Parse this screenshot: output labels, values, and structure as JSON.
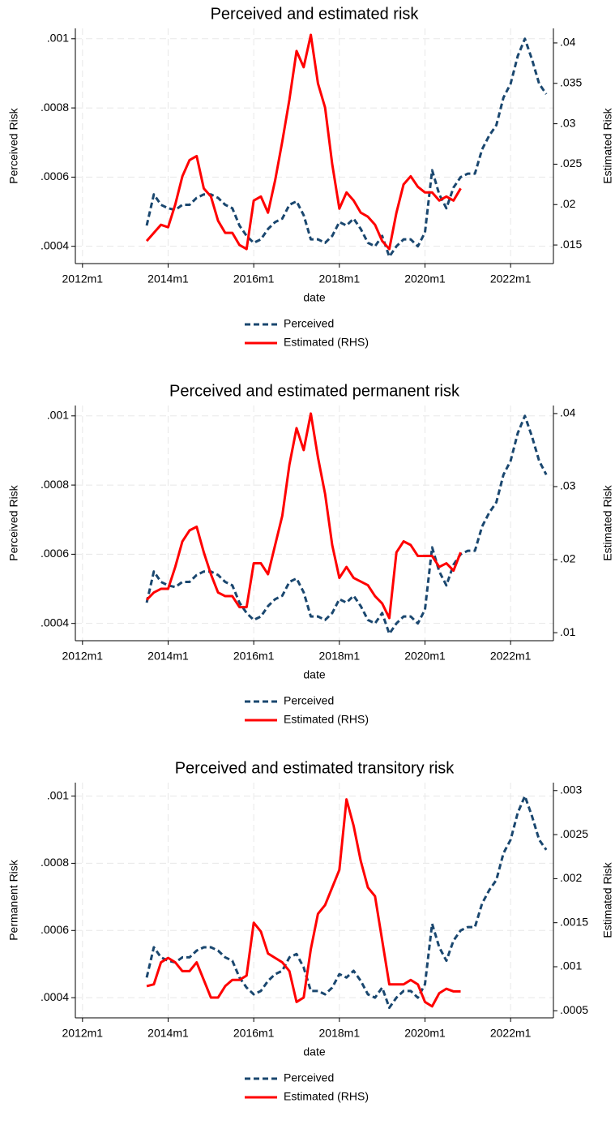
{
  "chart_data": [
    {
      "type": "line",
      "title": "Perceived and estimated risk",
      "xlabel": "date",
      "ylabel": "Perceived Risk",
      "y2label": "Estimated Risk",
      "x": [
        "2013m7",
        "2013m9",
        "2013m11",
        "2014m1",
        "2014m3",
        "2014m5",
        "2014m7",
        "2014m9",
        "2014m11",
        "2015m1",
        "2015m3",
        "2015m5",
        "2015m7",
        "2015m9",
        "2015m11",
        "2016m1",
        "2016m3",
        "2016m5",
        "2016m7",
        "2016m9",
        "2016m11",
        "2017m1",
        "2017m3",
        "2017m5",
        "2017m7",
        "2017m9",
        "2017m11",
        "2018m1",
        "2018m3",
        "2018m5",
        "2018m7",
        "2018m9",
        "2018m11",
        "2019m1",
        "2019m3",
        "2019m5",
        "2019m7",
        "2019m9",
        "2019m11",
        "2020m1",
        "2020m3",
        "2020m5",
        "2020m7",
        "2020m9",
        "2020m11",
        "2021m1",
        "2021m3",
        "2021m5",
        "2021m7",
        "2021m9",
        "2021m11",
        "2022m1",
        "2022m3",
        "2022m5",
        "2022m7",
        "2022m9",
        "2022m11"
      ],
      "series": [
        {
          "name": "Perceived",
          "color": "#1a476f",
          "dash": true,
          "axis": "y",
          "values": [
            0.00046,
            0.00055,
            0.00052,
            0.00051,
            0.000505,
            0.00052,
            0.00052,
            0.00054,
            0.00055,
            0.00055,
            0.00054,
            0.00052,
            0.00051,
            0.00046,
            0.00043,
            0.00041,
            0.00042,
            0.00045,
            0.00047,
            0.00048,
            0.00052,
            0.00053,
            0.00049,
            0.00042,
            0.00042,
            0.00041,
            0.00043,
            0.00047,
            0.00046,
            0.00048,
            0.00045,
            0.00041,
            0.0004,
            0.00043,
            0.00037,
            0.0004,
            0.00042,
            0.00042,
            0.0004,
            0.00044,
            0.00062,
            0.00055,
            0.00051,
            0.00057,
            0.0006,
            0.00061,
            0.00061,
            0.00068,
            0.00072,
            0.00075,
            0.00083,
            0.00087,
            0.00095,
            0.001,
            0.00094,
            0.00087,
            0.00084
          ]
        },
        {
          "name": "Estimated (RHS)",
          "color": "#ff0000",
          "dash": false,
          "axis": "y2",
          "values": [
            0.0155,
            0.0165,
            0.0175,
            0.0172,
            0.02,
            0.0235,
            0.0255,
            0.026,
            0.022,
            0.021,
            0.018,
            0.0165,
            0.0165,
            0.015,
            0.0145,
            0.0205,
            0.021,
            0.019,
            0.023,
            0.0278,
            0.033,
            0.039,
            0.037,
            0.041,
            0.035,
            0.032,
            0.025,
            0.0195,
            0.0215,
            0.0205,
            0.019,
            0.0185,
            0.0175,
            0.0155,
            0.0145,
            0.019,
            0.0225,
            0.0235,
            0.0222,
            0.0215,
            0.0215,
            0.0205,
            0.021,
            0.0205,
            0.022,
            null,
            null,
            null,
            null,
            null,
            null,
            null,
            null,
            null,
            null,
            null,
            null
          ]
        }
      ],
      "xlim": [
        "2011m11",
        "2023m1"
      ],
      "xticks": [
        "2012m1",
        "2014m1",
        "2016m1",
        "2018m1",
        "2020m1",
        "2022m1"
      ],
      "ylim": [
        0.00035,
        0.00103
      ],
      "yticks": [
        {
          "value": 0.0004,
          "label": ".0004"
        },
        {
          "value": 0.0006,
          "label": ".0006"
        },
        {
          "value": 0.0008,
          "label": ".0008"
        },
        {
          "value": 0.001,
          "label": ".001"
        }
      ],
      "y2lim": [
        0.0127,
        0.0418
      ],
      "y2ticks": [
        {
          "value": 0.015,
          "label": ".015"
        },
        {
          "value": 0.02,
          "label": ".02"
        },
        {
          "value": 0.025,
          "label": ".025"
        },
        {
          "value": 0.03,
          "label": ".03"
        },
        {
          "value": 0.035,
          "label": ".035"
        },
        {
          "value": 0.04,
          "label": ".04"
        }
      ],
      "grid": true
    },
    {
      "type": "line",
      "title": "Perceived and estimated permanent risk",
      "xlabel": "date",
      "ylabel": "Perceived Risk",
      "y2label": "Estimated Risk",
      "x": [
        "2013m7",
        "2013m9",
        "2013m11",
        "2014m1",
        "2014m3",
        "2014m5",
        "2014m7",
        "2014m9",
        "2014m11",
        "2015m1",
        "2015m3",
        "2015m5",
        "2015m7",
        "2015m9",
        "2015m11",
        "2016m1",
        "2016m3",
        "2016m5",
        "2016m7",
        "2016m9",
        "2016m11",
        "2017m1",
        "2017m3",
        "2017m5",
        "2017m7",
        "2017m9",
        "2017m11",
        "2018m1",
        "2018m3",
        "2018m5",
        "2018m7",
        "2018m9",
        "2018m11",
        "2019m1",
        "2019m3",
        "2019m5",
        "2019m7",
        "2019m9",
        "2019m11",
        "2020m1",
        "2020m3",
        "2020m5",
        "2020m7",
        "2020m9",
        "2020m11",
        "2021m1",
        "2021m3",
        "2021m5",
        "2021m7",
        "2021m9",
        "2021m11",
        "2022m1",
        "2022m3",
        "2022m5",
        "2022m7",
        "2022m9",
        "2022m11"
      ],
      "series": [
        {
          "name": "Perceived",
          "color": "#1a476f",
          "dash": true,
          "axis": "y",
          "values": [
            0.00046,
            0.00055,
            0.00052,
            0.00051,
            0.000505,
            0.00052,
            0.00052,
            0.00054,
            0.00055,
            0.00055,
            0.00054,
            0.00052,
            0.00051,
            0.00046,
            0.00043,
            0.00041,
            0.00042,
            0.00045,
            0.00047,
            0.00048,
            0.00052,
            0.00053,
            0.00049,
            0.00042,
            0.00042,
            0.00041,
            0.00043,
            0.00047,
            0.00046,
            0.00048,
            0.00045,
            0.00041,
            0.0004,
            0.00043,
            0.00037,
            0.0004,
            0.00042,
            0.00042,
            0.0004,
            0.00044,
            0.00062,
            0.00055,
            0.00051,
            0.00057,
            0.0006,
            0.00061,
            0.00061,
            0.00068,
            0.00072,
            0.00075,
            0.00083,
            0.00087,
            0.00095,
            0.001,
            0.00094,
            0.00087,
            0.00083
          ]
        },
        {
          "name": "Estimated (RHS)",
          "color": "#ff0000",
          "dash": false,
          "axis": "y2",
          "values": [
            0.0145,
            0.0155,
            0.016,
            0.016,
            0.019,
            0.0225,
            0.024,
            0.0245,
            0.021,
            0.018,
            0.0155,
            0.015,
            0.015,
            0.0135,
            0.0135,
            0.0195,
            0.0195,
            0.018,
            0.022,
            0.026,
            0.033,
            0.038,
            0.035,
            0.04,
            0.034,
            0.029,
            0.022,
            0.0175,
            0.019,
            0.0175,
            0.017,
            0.0165,
            0.015,
            0.014,
            0.012,
            0.021,
            0.0225,
            0.022,
            0.0205,
            0.0205,
            0.0205,
            0.019,
            0.0195,
            0.0185,
            0.021,
            null,
            null,
            null,
            null,
            null,
            null,
            null,
            null,
            null,
            null,
            null,
            null
          ]
        }
      ],
      "xlim": [
        "2011m11",
        "2023m1"
      ],
      "xticks": [
        "2012m1",
        "2014m1",
        "2016m1",
        "2018m1",
        "2020m1",
        "2022m1"
      ],
      "ylim": [
        0.00035,
        0.00103
      ],
      "yticks": [
        {
          "value": 0.0004,
          "label": ".0004"
        },
        {
          "value": 0.0006,
          "label": ".0006"
        },
        {
          "value": 0.0008,
          "label": ".0008"
        },
        {
          "value": 0.001,
          "label": ".001"
        }
      ],
      "y2lim": [
        0.0089,
        0.0411
      ],
      "y2ticks": [
        {
          "value": 0.01,
          "label": ".01"
        },
        {
          "value": 0.02,
          "label": ".02"
        },
        {
          "value": 0.03,
          "label": ".03"
        },
        {
          "value": 0.04,
          "label": ".04"
        }
      ],
      "grid": true
    },
    {
      "type": "line",
      "title": "Perceived and estimated transitory risk",
      "xlabel": "date",
      "ylabel": "Permanent Risk",
      "y2label": "Estimated Risk",
      "x": [
        "2013m7",
        "2013m9",
        "2013m11",
        "2014m1",
        "2014m3",
        "2014m5",
        "2014m7",
        "2014m9",
        "2014m11",
        "2015m1",
        "2015m3",
        "2015m5",
        "2015m7",
        "2015m9",
        "2015m11",
        "2016m1",
        "2016m3",
        "2016m5",
        "2016m7",
        "2016m9",
        "2016m11",
        "2017m1",
        "2017m3",
        "2017m5",
        "2017m7",
        "2017m9",
        "2017m11",
        "2018m1",
        "2018m3",
        "2018m5",
        "2018m7",
        "2018m9",
        "2018m11",
        "2019m1",
        "2019m3",
        "2019m5",
        "2019m7",
        "2019m9",
        "2019m11",
        "2020m1",
        "2020m3",
        "2020m5",
        "2020m7",
        "2020m9",
        "2020m11",
        "2021m1",
        "2021m3",
        "2021m5",
        "2021m7",
        "2021m9",
        "2021m11",
        "2022m1",
        "2022m3",
        "2022m5",
        "2022m7",
        "2022m9",
        "2022m11"
      ],
      "series": [
        {
          "name": "Perceived",
          "color": "#1a476f",
          "dash": true,
          "axis": "y",
          "values": [
            0.00046,
            0.00055,
            0.00052,
            0.00051,
            0.000505,
            0.00052,
            0.00052,
            0.00054,
            0.00055,
            0.00055,
            0.00054,
            0.00052,
            0.00051,
            0.00046,
            0.00043,
            0.00041,
            0.00042,
            0.00045,
            0.00047,
            0.00048,
            0.00052,
            0.00053,
            0.00049,
            0.00042,
            0.00042,
            0.00041,
            0.00043,
            0.00047,
            0.00046,
            0.00048,
            0.00045,
            0.00041,
            0.0004,
            0.00043,
            0.00037,
            0.0004,
            0.00042,
            0.00042,
            0.0004,
            0.00044,
            0.00062,
            0.00055,
            0.00051,
            0.00057,
            0.0006,
            0.00061,
            0.00061,
            0.00068,
            0.00072,
            0.00075,
            0.00083,
            0.00087,
            0.00095,
            0.001,
            0.00094,
            0.00087,
            0.00084
          ]
        },
        {
          "name": "Estimated (RHS)",
          "color": "#ff0000",
          "dash": false,
          "axis": "y2",
          "values": [
            0.00078,
            0.0008,
            0.00105,
            0.0011,
            0.00105,
            0.00095,
            0.00095,
            0.00105,
            0.00085,
            0.00065,
            0.00065,
            0.00078,
            0.00085,
            0.00085,
            0.0009,
            0.0015,
            0.0014,
            0.00115,
            0.0011,
            0.00105,
            0.00095,
            0.0006,
            0.00065,
            0.0012,
            0.0016,
            0.0017,
            0.0019,
            0.0021,
            0.0029,
            0.0026,
            0.0022,
            0.0019,
            0.0018,
            0.0013,
            0.0008,
            0.0008,
            0.0008,
            0.00085,
            0.0008,
            0.0006,
            0.00055,
            0.0007,
            0.00075,
            0.00072,
            0.00072,
            null,
            null,
            null,
            null,
            null,
            null,
            null,
            null,
            null,
            null,
            null,
            null
          ]
        }
      ],
      "xlim": [
        "2011m11",
        "2023m1"
      ],
      "xticks": [
        "2012m1",
        "2014m1",
        "2016m1",
        "2018m1",
        "2020m1",
        "2022m1"
      ],
      "ylim": [
        0.00034,
        0.00104
      ],
      "yticks": [
        {
          "value": 0.0004,
          "label": ".0004"
        },
        {
          "value": 0.0006,
          "label": ".0006"
        },
        {
          "value": 0.0008,
          "label": ".0008"
        },
        {
          "value": 0.001,
          "label": ".001"
        }
      ],
      "y2lim": [
        0.00042,
        0.00309
      ],
      "y2ticks": [
        {
          "value": 0.0005,
          "label": ".0005"
        },
        {
          "value": 0.001,
          "label": ".001"
        },
        {
          "value": 0.0015,
          "label": ".0015"
        },
        {
          "value": 0.002,
          "label": ".002"
        },
        {
          "value": 0.0025,
          "label": ".0025"
        },
        {
          "value": 0.003,
          "label": ".003"
        }
      ],
      "grid": true
    }
  ]
}
